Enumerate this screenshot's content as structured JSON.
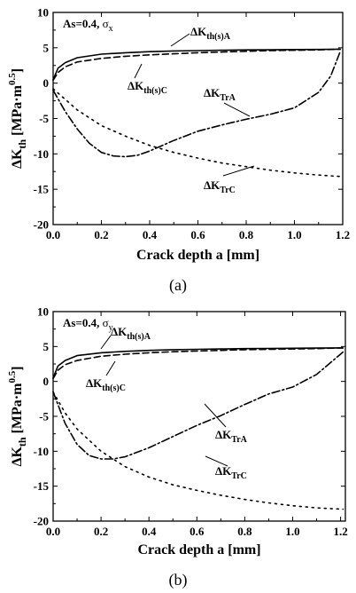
{
  "chart_data": [
    {
      "type": "line",
      "caption": "(a)",
      "annotation": {
        "pre": "As=0.4, ",
        "sym": "σ",
        "sub": "x"
      },
      "xlabel": "Crack depth a [mm]",
      "ylabel": {
        "pre": "ΔK",
        "sub": "th",
        "mid": " [MPa·m",
        "sup": "0.5",
        "post": "]"
      },
      "xlim": [
        0,
        1.2
      ],
      "ylim": [
        -20,
        10
      ],
      "xticks": [
        "0.0",
        "0.2",
        "0.4",
        "0.6",
        "0.8",
        "1.0",
        "1.2"
      ],
      "yticks": [
        "10",
        "5",
        "0",
        "-5",
        "-10",
        "-15",
        "-20"
      ],
      "series": [
        {
          "key": "thA",
          "style": "solid",
          "label": {
            "pre": "ΔK",
            "sub": "th(s)A"
          },
          "x": [
            0,
            0.02,
            0.05,
            0.1,
            0.2,
            0.3,
            0.4,
            0.5,
            0.6,
            0.7,
            0.8,
            0.9,
            1.0,
            1.1,
            1.19
          ],
          "y": [
            0.5,
            2.1,
            2.9,
            3.6,
            4.1,
            4.3,
            4.45,
            4.55,
            4.6,
            4.65,
            4.7,
            4.72,
            4.75,
            4.77,
            4.8
          ]
        },
        {
          "key": "thC",
          "style": "dash",
          "label": {
            "pre": "ΔK",
            "sub": "th(s)C"
          },
          "x": [
            0,
            0.02,
            0.05,
            0.1,
            0.2,
            0.3,
            0.4,
            0.5,
            0.6,
            0.7,
            0.8,
            0.9,
            1.0,
            1.1,
            1.19
          ],
          "y": [
            0.4,
            1.5,
            2.3,
            3.0,
            3.5,
            3.8,
            4.0,
            4.15,
            4.3,
            4.4,
            4.5,
            4.6,
            4.65,
            4.7,
            4.8
          ]
        },
        {
          "key": "TrA",
          "style": "dashdot",
          "label": {
            "pre": "ΔK",
            "sub": "TrA"
          },
          "x": [
            0,
            0.05,
            0.1,
            0.15,
            0.2,
            0.25,
            0.3,
            0.35,
            0.4,
            0.5,
            0.6,
            0.7,
            0.8,
            0.9,
            1.0,
            1.1,
            1.15,
            1.19
          ],
          "y": [
            -1.0,
            -4.0,
            -6.5,
            -8.5,
            -9.8,
            -10.3,
            -10.4,
            -10.2,
            -9.6,
            -8.1,
            -6.8,
            -5.9,
            -5.1,
            -4.4,
            -3.5,
            -1.3,
            1.0,
            4.5
          ]
        },
        {
          "key": "TrC",
          "style": "dot",
          "label": {
            "pre": "ΔK",
            "sub": "TrC"
          },
          "x": [
            0,
            0.1,
            0.2,
            0.3,
            0.4,
            0.5,
            0.6,
            0.7,
            0.8,
            0.9,
            1.0,
            1.1,
            1.19
          ],
          "y": [
            -0.8,
            -3.8,
            -6.0,
            -7.5,
            -8.8,
            -9.8,
            -10.6,
            -11.3,
            -11.8,
            -12.3,
            -12.7,
            -13.0,
            -13.2
          ]
        }
      ]
    },
    {
      "type": "line",
      "caption": "(b)",
      "annotation": {
        "pre": "As=0.4, ",
        "sym": "σ",
        "sub": "y"
      },
      "xlabel": "Crack depth a [mm]",
      "ylabel": {
        "pre": "ΔK",
        "sub": "th",
        "mid": " [MPa·m",
        "sup": "0.5",
        "post": "]"
      },
      "xlim": [
        0,
        1.22
      ],
      "ylim": [
        -20,
        10
      ],
      "xticks": [
        "0.0",
        "0.2",
        "0.4",
        "0.6",
        "0.8",
        "1.0",
        "1.2"
      ],
      "yticks": [
        "10",
        "5",
        "0",
        "-5",
        "-10",
        "-15",
        "-20"
      ],
      "series": [
        {
          "key": "thA",
          "style": "solid",
          "label": {
            "pre": "ΔK",
            "sub": "th(s)A"
          },
          "x": [
            0,
            0.02,
            0.05,
            0.1,
            0.2,
            0.3,
            0.4,
            0.5,
            0.6,
            0.7,
            0.8,
            0.9,
            1.0,
            1.1,
            1.21
          ],
          "y": [
            0.5,
            2.2,
            3.0,
            3.7,
            4.1,
            4.3,
            4.45,
            4.55,
            4.6,
            4.65,
            4.7,
            4.72,
            4.75,
            4.77,
            4.8
          ]
        },
        {
          "key": "thC",
          "style": "dash",
          "label": {
            "pre": "ΔK",
            "sub": "th(s)C"
          },
          "x": [
            0,
            0.02,
            0.05,
            0.1,
            0.2,
            0.3,
            0.4,
            0.5,
            0.6,
            0.7,
            0.8,
            0.9,
            1.0,
            1.1,
            1.21
          ],
          "y": [
            0.4,
            1.6,
            2.4,
            3.0,
            3.6,
            3.9,
            4.1,
            4.25,
            4.35,
            4.45,
            4.55,
            4.6,
            4.65,
            4.7,
            4.8
          ]
        },
        {
          "key": "TrA",
          "style": "dashdot",
          "label": {
            "pre": "ΔK",
            "sub": "TrA"
          },
          "x": [
            0,
            0.05,
            0.1,
            0.15,
            0.2,
            0.25,
            0.3,
            0.4,
            0.5,
            0.6,
            0.7,
            0.8,
            0.9,
            1.0,
            1.1,
            1.21
          ],
          "y": [
            -1.5,
            -6.0,
            -9.0,
            -10.6,
            -11.1,
            -11.1,
            -10.8,
            -9.5,
            -7.9,
            -6.3,
            -4.9,
            -3.3,
            -1.8,
            -0.8,
            1.0,
            4.2
          ]
        },
        {
          "key": "TrC",
          "style": "dot",
          "label": {
            "pre": "ΔK",
            "sub": "TrC"
          },
          "x": [
            0,
            0.05,
            0.1,
            0.2,
            0.3,
            0.4,
            0.5,
            0.6,
            0.7,
            0.8,
            0.9,
            1.0,
            1.1,
            1.21
          ],
          "y": [
            -1.5,
            -4.5,
            -6.8,
            -10.0,
            -12.2,
            -13.7,
            -14.8,
            -15.6,
            -16.3,
            -16.9,
            -17.4,
            -17.8,
            -18.1,
            -18.3
          ]
        }
      ]
    }
  ]
}
